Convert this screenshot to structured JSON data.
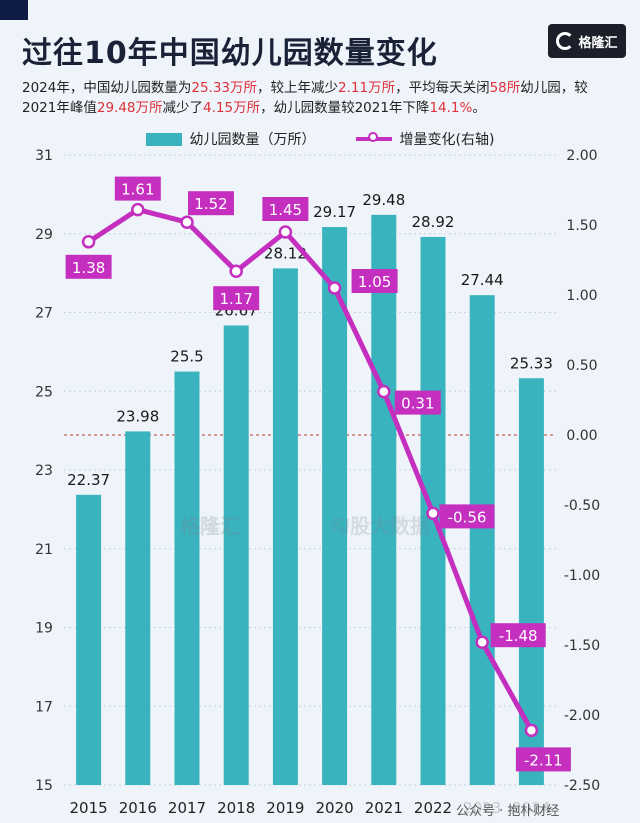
{
  "header": {
    "title": "过往10年中国幼儿园数量变化",
    "logo_text": "格隆汇",
    "subtitle_parts": [
      {
        "text": "2024年，中国幼儿园数量为",
        "hl": false
      },
      {
        "text": "25.33万所",
        "hl": true
      },
      {
        "text": "，较上年减少",
        "hl": false
      },
      {
        "text": "2.11万所",
        "hl": true
      },
      {
        "text": "，平均每天关闭",
        "hl": false
      },
      {
        "text": "58所",
        "hl": true
      },
      {
        "text": "幼儿园，较2021年峰值",
        "hl": false
      },
      {
        "text": "29.48万所",
        "hl": true
      },
      {
        "text": "减少了",
        "hl": false
      },
      {
        "text": "4.15万所",
        "hl": true
      },
      {
        "text": "，幼儿园数量较2021年下降",
        "hl": false
      },
      {
        "text": "14.1%",
        "hl": true
      },
      {
        "text": "。",
        "hl": false
      }
    ]
  },
  "watermark": {
    "left": "格隆汇",
    "right": "勾股大数据"
  },
  "footer": {
    "text": "公众号 · 抱朴财经"
  },
  "colors": {
    "bar": "#39b3bd",
    "line": "#c42fbf",
    "highlight": "#e0303a",
    "zero_line": "#c0392b"
  },
  "chart_data": {
    "type": "bar",
    "categories": [
      "2015",
      "2016",
      "2017",
      "2018",
      "2019",
      "2020",
      "2021",
      "2022",
      "2023",
      "2024"
    ],
    "series": [
      {
        "name": "幼儿园数量（万所）",
        "type": "bar",
        "axis": "left",
        "values": [
          22.37,
          23.98,
          25.5,
          26.67,
          28.12,
          29.17,
          29.48,
          28.92,
          27.44,
          25.33
        ],
        "labels": [
          "22.37",
          "23.98",
          "25.5",
          "26.67",
          "28.12",
          "29.17",
          "29.48",
          "28.92",
          "27.44",
          "25.33"
        ]
      },
      {
        "name": "增量变化(右轴)",
        "type": "line",
        "axis": "right",
        "values": [
          1.38,
          1.61,
          1.52,
          1.17,
          1.45,
          1.05,
          0.31,
          -0.56,
          -1.48,
          -2.11
        ],
        "labels": [
          "1.38",
          "1.61",
          "1.52",
          "1.17",
          "1.45",
          "1.05",
          "0.31",
          "-0.56",
          "-1.48",
          "-2.11"
        ]
      }
    ],
    "ylim_left": [
      15,
      31
    ],
    "yticks_left": [
      "15",
      "17",
      "19",
      "21",
      "23",
      "25",
      "27",
      "29",
      "31"
    ],
    "ylim_right": [
      -2.5,
      2.0
    ],
    "yticks_right": [
      "-2.50",
      "-2.00",
      "-1.50",
      "-1.00",
      "-0.50",
      "0.00",
      "0.50",
      "1.00",
      "1.50",
      "2.00"
    ],
    "grid": true,
    "legend_position": "top-center"
  }
}
